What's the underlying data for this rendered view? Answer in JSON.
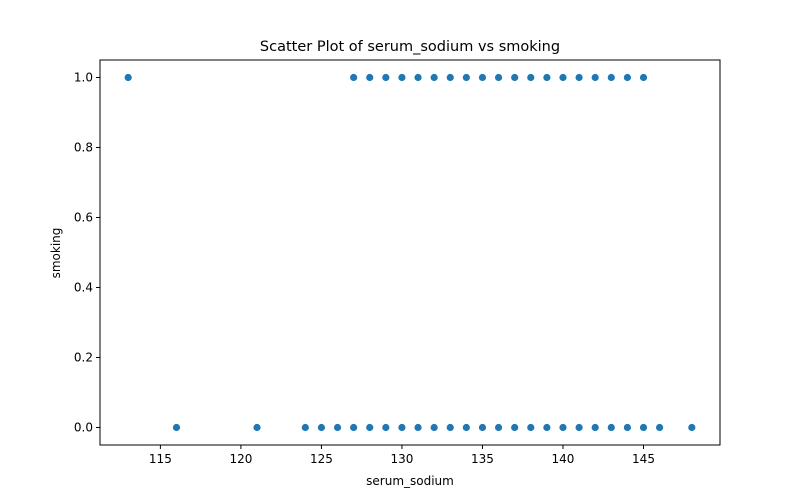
{
  "chart_data": {
    "type": "scatter",
    "title": "Scatter Plot of serum_sodium vs smoking",
    "xlabel": "serum_sodium",
    "ylabel": "smoking",
    "xlim": [
      111.25,
      149.75
    ],
    "ylim": [
      -0.05,
      1.05
    ],
    "xticks": [
      115,
      120,
      125,
      130,
      135,
      140,
      145
    ],
    "xtick_labels": [
      "115",
      "120",
      "125",
      "130",
      "135",
      "140",
      "145"
    ],
    "yticks": [
      0.0,
      0.2,
      0.4,
      0.6,
      0.8,
      1.0
    ],
    "ytick_labels": [
      "0.0",
      "0.2",
      "0.4",
      "0.6",
      "0.8",
      "1.0"
    ],
    "grid": false,
    "legend": "none",
    "marker_color": "#1f77b4",
    "points": [
      {
        "x": 113,
        "y": 1
      },
      {
        "x": 127,
        "y": 1
      },
      {
        "x": 128,
        "y": 1
      },
      {
        "x": 129,
        "y": 1
      },
      {
        "x": 130,
        "y": 1
      },
      {
        "x": 131,
        "y": 1
      },
      {
        "x": 132,
        "y": 1
      },
      {
        "x": 133,
        "y": 1
      },
      {
        "x": 134,
        "y": 1
      },
      {
        "x": 135,
        "y": 1
      },
      {
        "x": 136,
        "y": 1
      },
      {
        "x": 137,
        "y": 1
      },
      {
        "x": 138,
        "y": 1
      },
      {
        "x": 139,
        "y": 1
      },
      {
        "x": 140,
        "y": 1
      },
      {
        "x": 141,
        "y": 1
      },
      {
        "x": 142,
        "y": 1
      },
      {
        "x": 143,
        "y": 1
      },
      {
        "x": 144,
        "y": 1
      },
      {
        "x": 145,
        "y": 1
      },
      {
        "x": 116,
        "y": 0
      },
      {
        "x": 121,
        "y": 0
      },
      {
        "x": 124,
        "y": 0
      },
      {
        "x": 125,
        "y": 0
      },
      {
        "x": 126,
        "y": 0
      },
      {
        "x": 127,
        "y": 0
      },
      {
        "x": 128,
        "y": 0
      },
      {
        "x": 129,
        "y": 0
      },
      {
        "x": 130,
        "y": 0
      },
      {
        "x": 131,
        "y": 0
      },
      {
        "x": 132,
        "y": 0
      },
      {
        "x": 133,
        "y": 0
      },
      {
        "x": 134,
        "y": 0
      },
      {
        "x": 135,
        "y": 0
      },
      {
        "x": 136,
        "y": 0
      },
      {
        "x": 137,
        "y": 0
      },
      {
        "x": 138,
        "y": 0
      },
      {
        "x": 139,
        "y": 0
      },
      {
        "x": 140,
        "y": 0
      },
      {
        "x": 141,
        "y": 0
      },
      {
        "x": 142,
        "y": 0
      },
      {
        "x": 143,
        "y": 0
      },
      {
        "x": 144,
        "y": 0
      },
      {
        "x": 145,
        "y": 0
      },
      {
        "x": 146,
        "y": 0
      },
      {
        "x": 148,
        "y": 0
      }
    ]
  }
}
